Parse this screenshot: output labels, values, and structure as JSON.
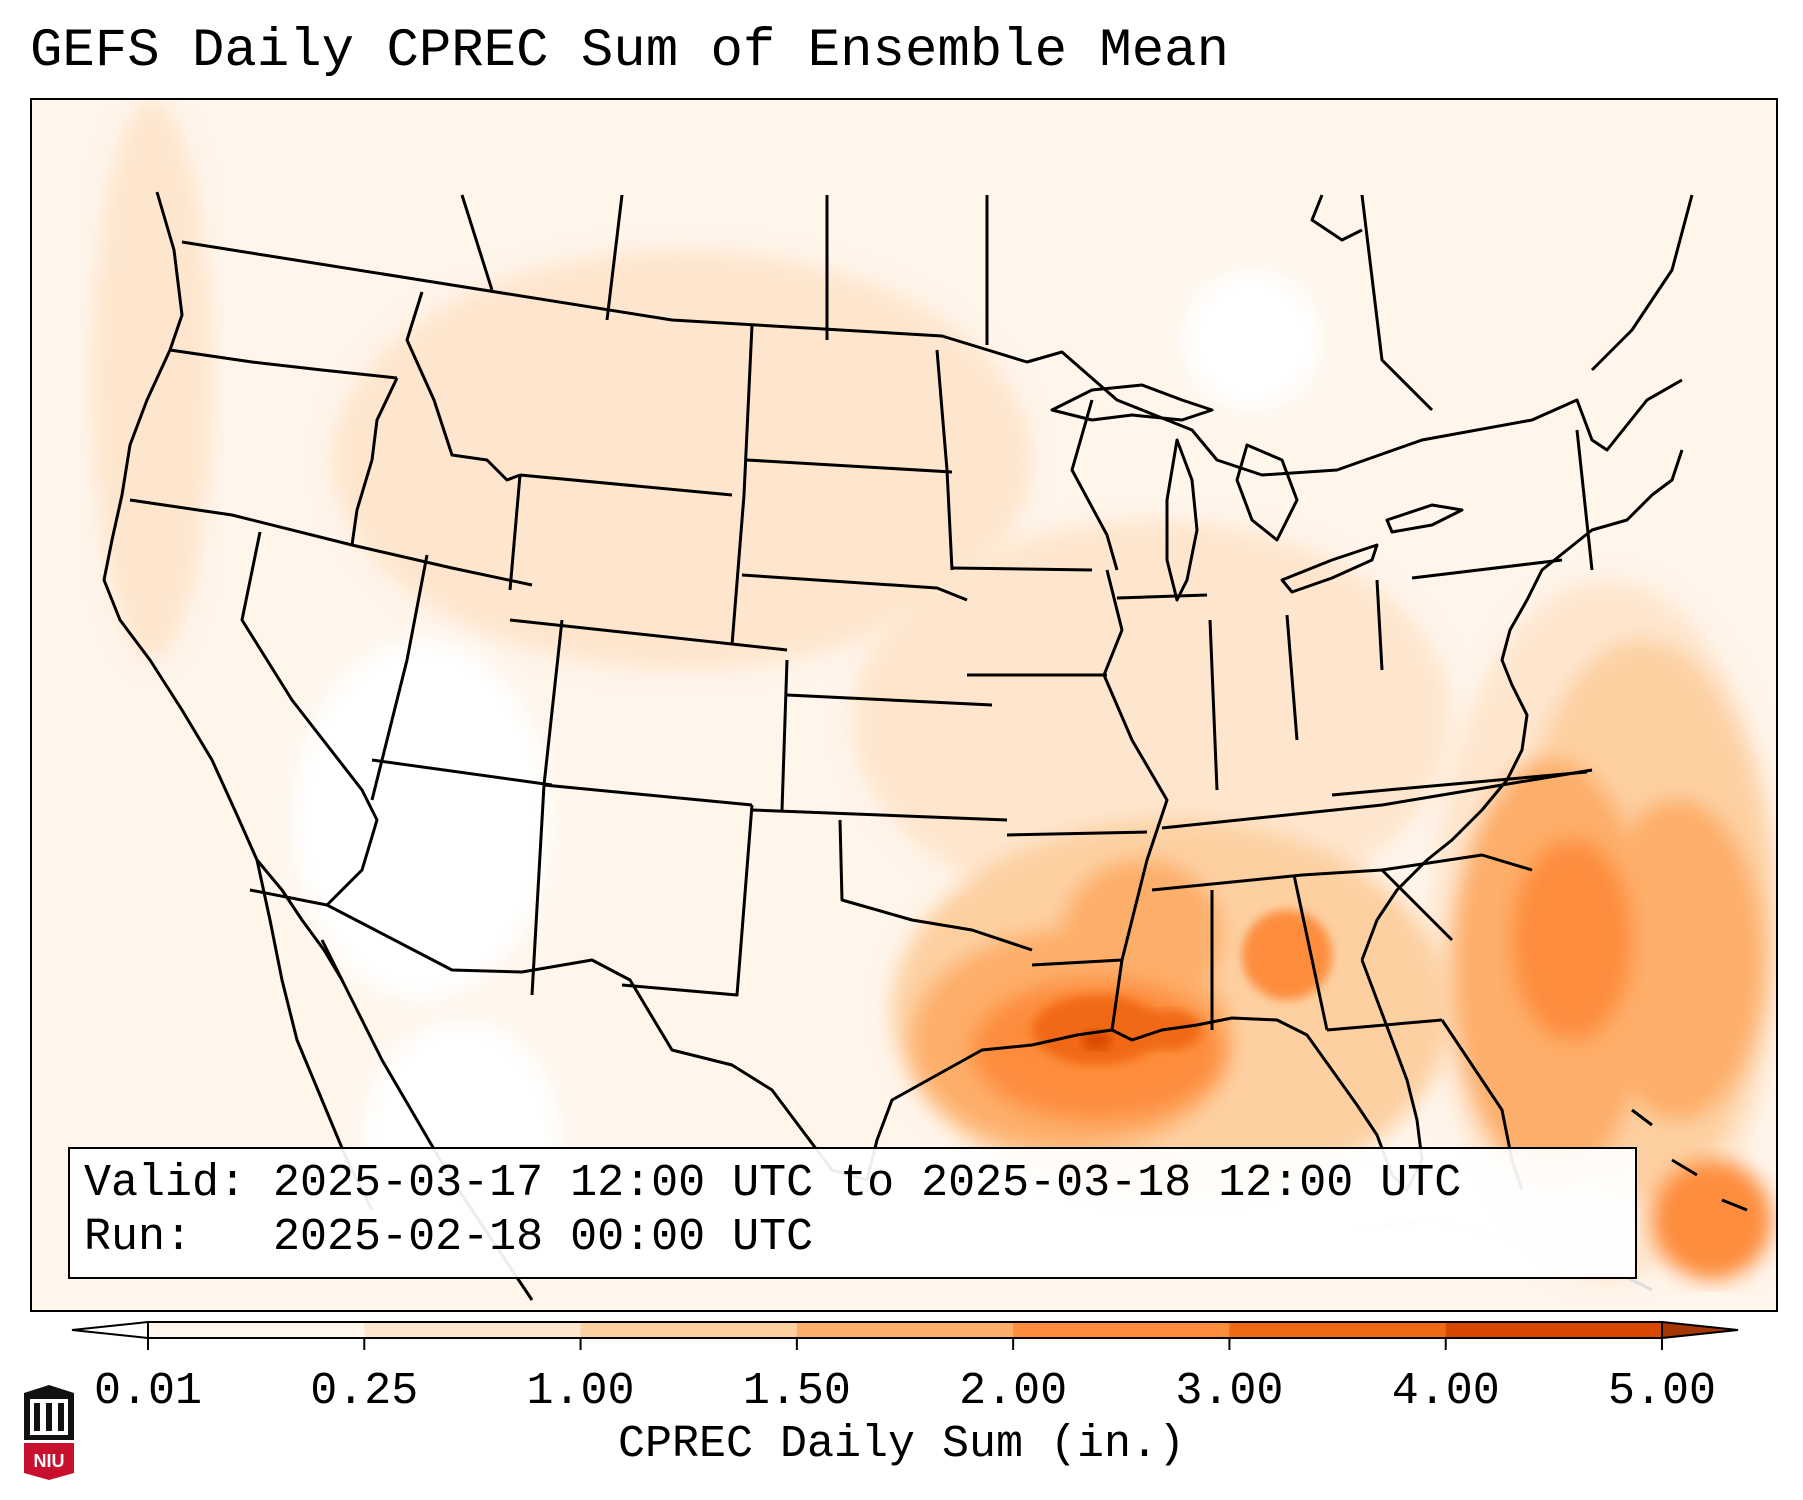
{
  "title": "GEFS Daily CPREC Sum of Ensemble Mean",
  "info": {
    "valid_label": "Valid:",
    "valid_value": "2025-03-17 12:00 UTC to 2025-03-18 12:00 UTC",
    "run_label": "Run:",
    "run_value": "2025-02-18 00:00 UTC"
  },
  "colorbar": {
    "label": "CPREC Daily Sum (in.)",
    "ticks": [
      "0.01",
      "0.25",
      "1.00",
      "1.50",
      "2.00",
      "3.00",
      "4.00",
      "5.00"
    ],
    "colors": [
      "#fff5eb",
      "#fee6ce",
      "#fdd0a2",
      "#fdae6b",
      "#fd8d3c",
      "#f16913",
      "#d94801",
      "#a63603"
    ],
    "under_color": "#ffffff",
    "over_color": "#a63603"
  },
  "logo": {
    "text": "NIU",
    "icon": "niu-tower-icon",
    "color": "#c8102e"
  },
  "map": {
    "projection": "lambert-conformal",
    "region": "CONUS",
    "precip_levels": [
      "#fff5eb",
      "#fee6ce",
      "#fdd0a2",
      "#fdae6b",
      "#fd8d3c",
      "#f16913",
      "#d94801"
    ]
  }
}
